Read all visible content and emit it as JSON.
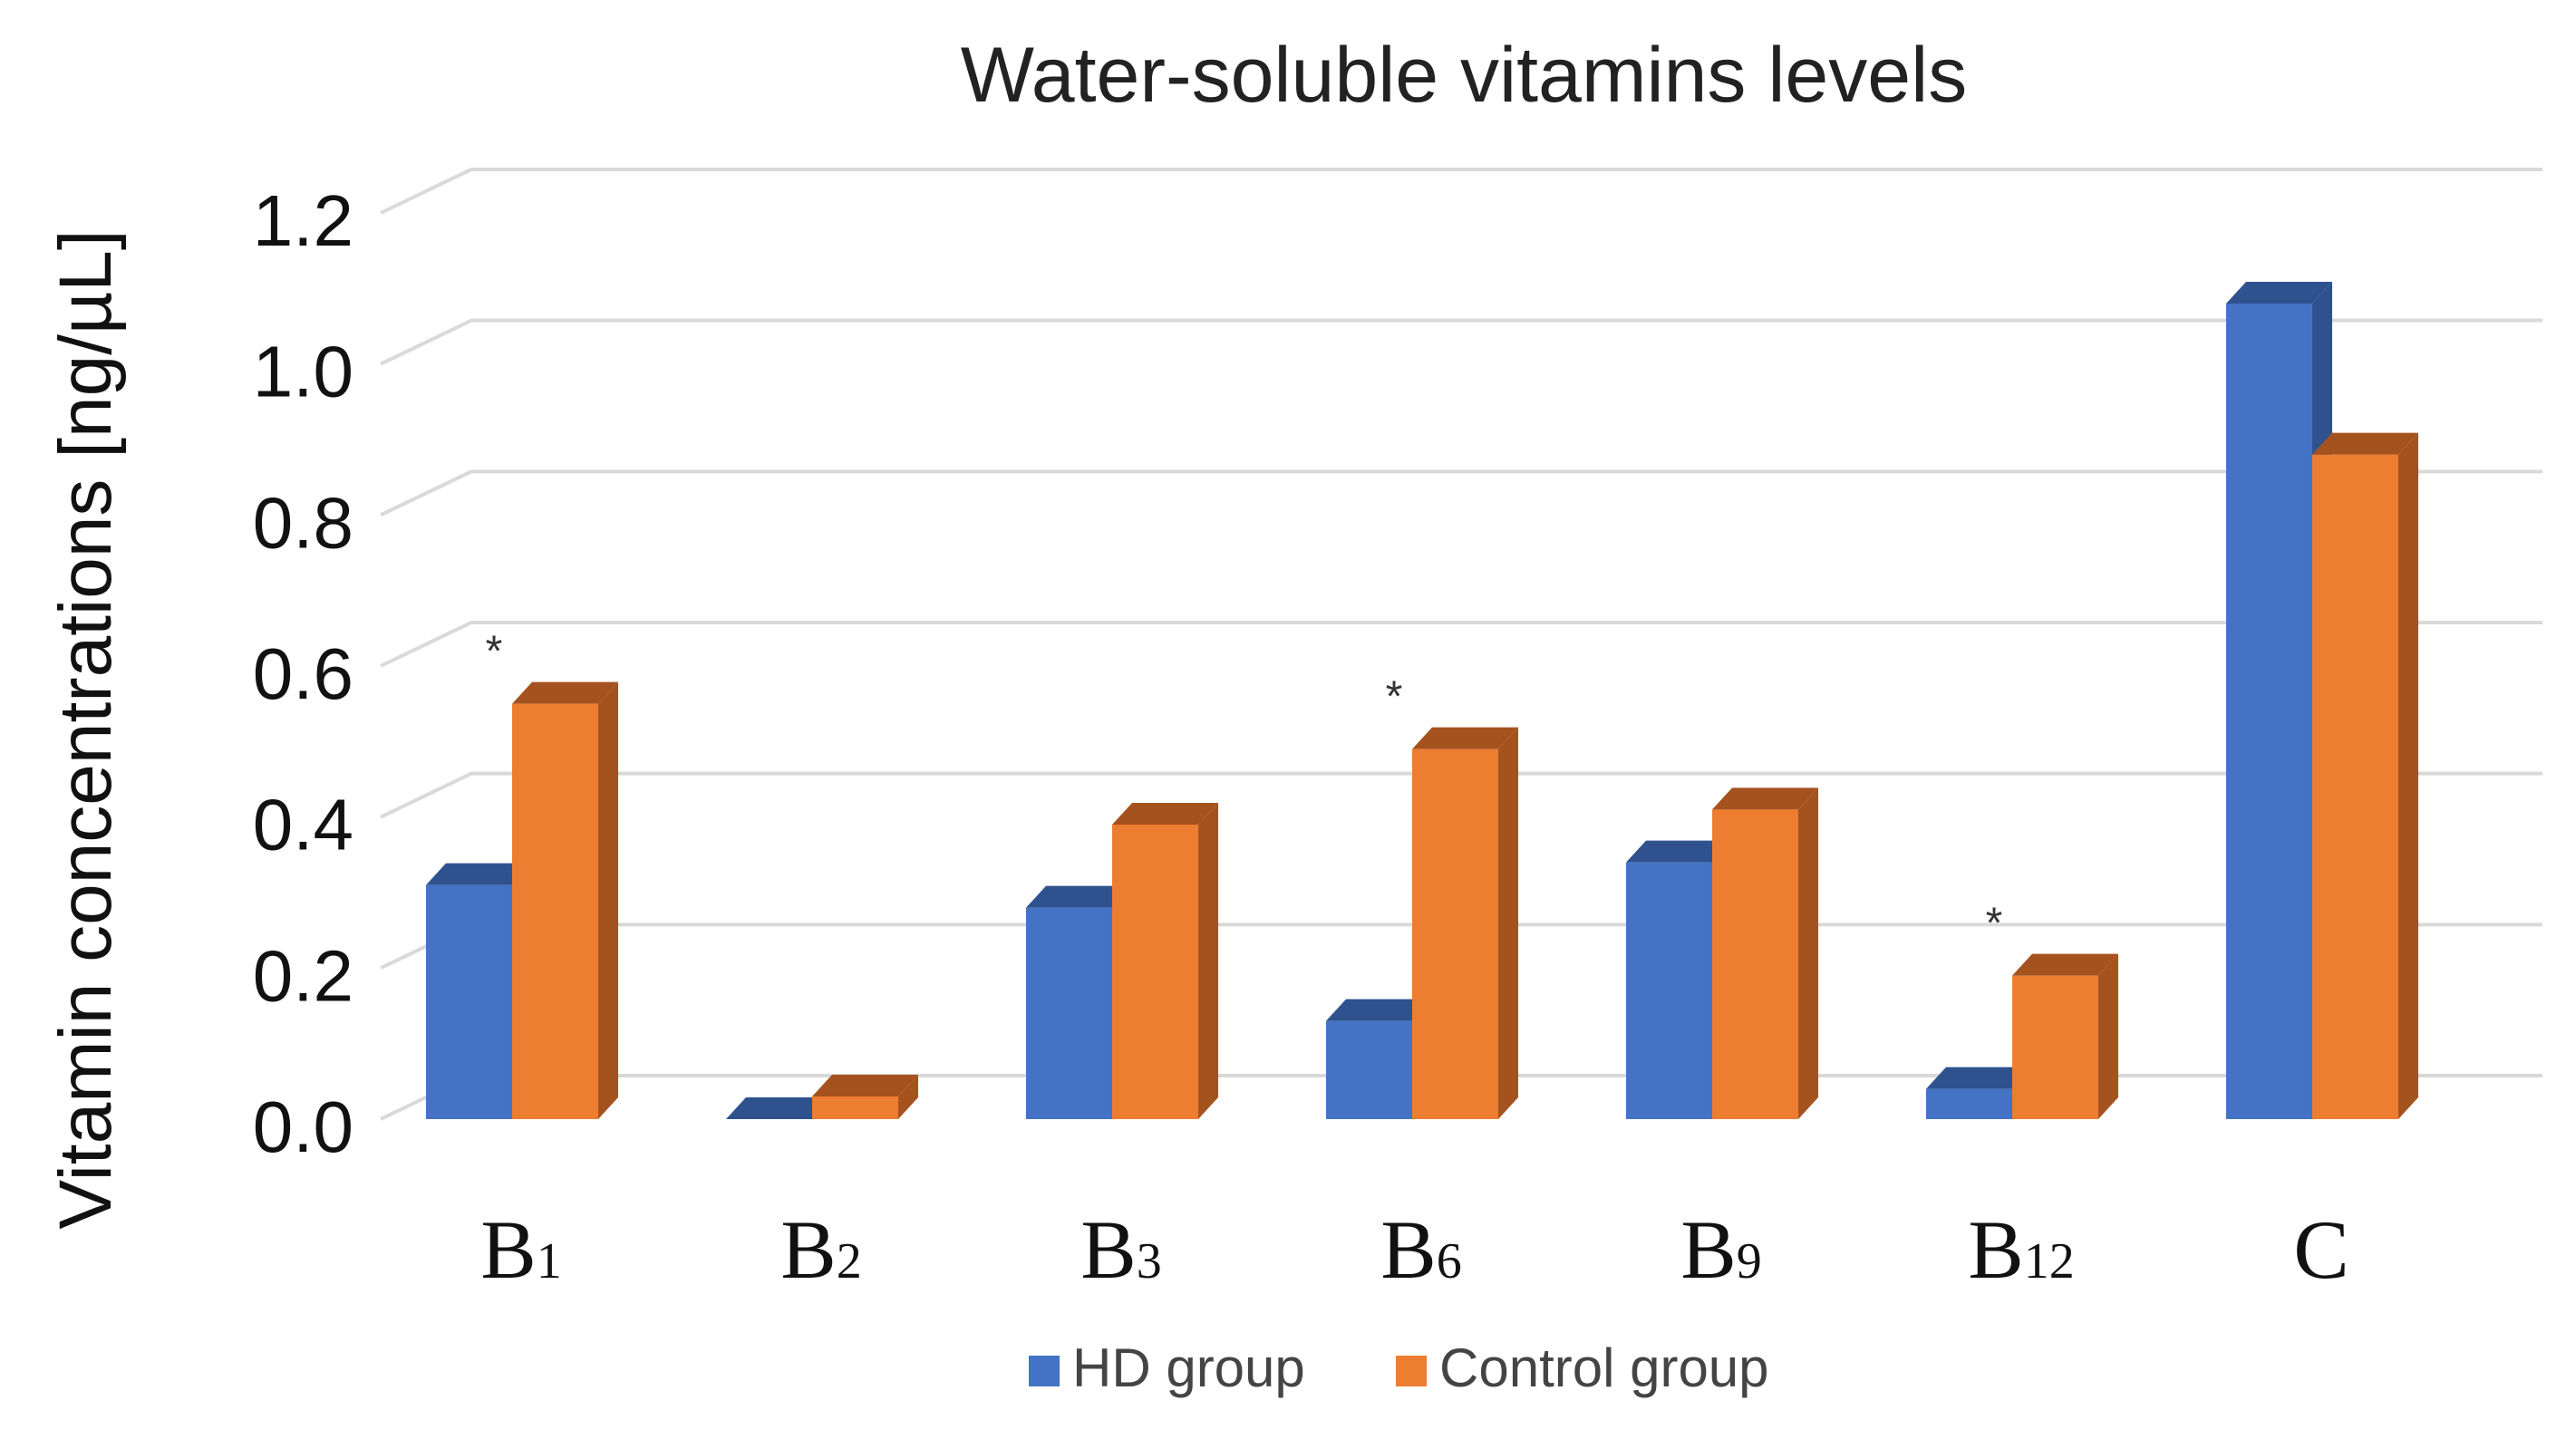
{
  "chart_data": {
    "type": "bar",
    "title": "Water-soluble vitamins levels",
    "ylabel": "Vitamin concentrations [ng/µL]",
    "xlabel": "",
    "categories": [
      {
        "letter": "B",
        "sub": "1"
      },
      {
        "letter": "B",
        "sub": "2"
      },
      {
        "letter": "B",
        "sub": "3"
      },
      {
        "letter": "B",
        "sub": "6"
      },
      {
        "letter": "B",
        "sub": "9"
      },
      {
        "letter": "B",
        "sub": "12"
      },
      {
        "letter": "C",
        "sub": ""
      }
    ],
    "series": [
      {
        "name": "HD group",
        "color": "#4472C4",
        "side_color": "#2F528F",
        "values": [
          0.31,
          0.0,
          0.28,
          0.13,
          0.34,
          0.04,
          1.08
        ]
      },
      {
        "name": "Control group",
        "color": "#ED7D31",
        "side_color": "#A5531E",
        "values": [
          0.55,
          0.03,
          0.39,
          0.49,
          0.41,
          0.19,
          0.88
        ]
      }
    ],
    "significance": [
      {
        "category_index": 0,
        "label": "*"
      },
      {
        "category_index": 3,
        "label": "*"
      },
      {
        "category_index": 5,
        "label": "*"
      }
    ],
    "ylim": [
      0,
      1.2
    ],
    "yticks": [
      "0.0",
      "0.2",
      "0.4",
      "0.6",
      "0.8",
      "1.0",
      "1.2"
    ],
    "grid": true,
    "legend_position": "bottom"
  }
}
